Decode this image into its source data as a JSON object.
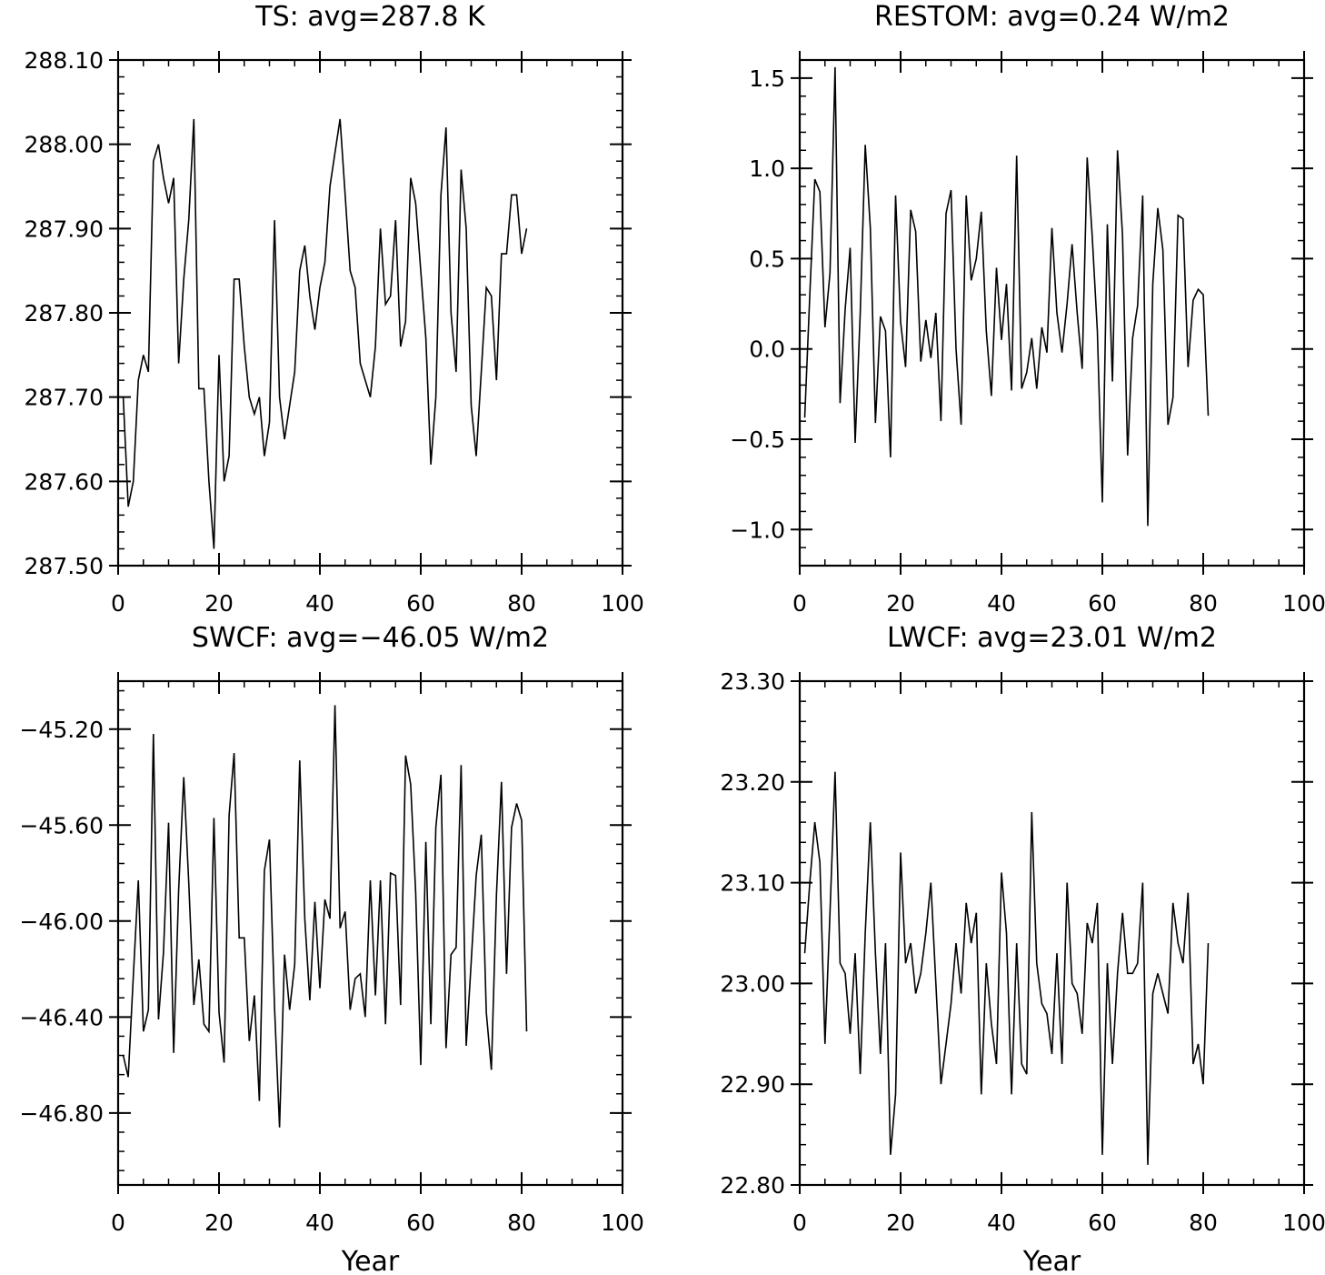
{
  "chart_data": [
    {
      "type": "line",
      "title": "TS: avg=287.8 K",
      "xlabel": "",
      "ylabel": "",
      "xlim": [
        0,
        100
      ],
      "ylim": [
        287.5,
        288.1
      ],
      "xticks": [
        0,
        20,
        40,
        60,
        80,
        100
      ],
      "xtick_labels": [
        "0",
        "20",
        "40",
        "60",
        "80",
        "100"
      ],
      "yticks": [
        287.5,
        287.6,
        287.7,
        287.8,
        287.9,
        288.0,
        288.1
      ],
      "ytick_labels": [
        "287.50",
        "287.60",
        "287.70",
        "287.80",
        "287.90",
        "288.00",
        "288.10"
      ],
      "x": [
        1,
        2,
        3,
        4,
        5,
        6,
        7,
        8,
        9,
        10,
        11,
        12,
        13,
        14,
        15,
        16,
        17,
        18,
        19,
        20,
        21,
        22,
        23,
        24,
        25,
        26,
        27,
        28,
        29,
        30,
        31,
        32,
        33,
        34,
        35,
        36,
        37,
        38,
        39,
        40,
        41,
        42,
        43,
        44,
        45,
        46,
        47,
        48,
        49,
        50,
        51,
        52,
        53,
        54,
        55,
        56,
        57,
        58,
        59,
        60,
        61,
        62,
        63,
        64,
        65,
        66,
        67,
        68,
        69,
        70,
        71,
        72,
        73,
        74,
        75,
        76,
        77,
        78,
        79,
        80,
        81
      ],
      "values": [
        287.7,
        287.57,
        287.6,
        287.72,
        287.75,
        287.73,
        287.98,
        288.0,
        287.96,
        287.93,
        287.96,
        287.74,
        287.84,
        287.91,
        288.03,
        287.71,
        287.71,
        287.6,
        287.52,
        287.75,
        287.6,
        287.63,
        287.84,
        287.84,
        287.76,
        287.7,
        287.68,
        287.7,
        287.63,
        287.67,
        287.91,
        287.7,
        287.65,
        287.69,
        287.73,
        287.85,
        287.88,
        287.82,
        287.78,
        287.83,
        287.86,
        287.95,
        287.99,
        288.03,
        287.94,
        287.85,
        287.83,
        287.74,
        287.72,
        287.7,
        287.76,
        287.9,
        287.81,
        287.82,
        287.91,
        287.76,
        287.79,
        287.96,
        287.93,
        287.85,
        287.77,
        287.62,
        287.7,
        287.94,
        288.02,
        287.8,
        287.73,
        287.97,
        287.9,
        287.69,
        287.63,
        287.73,
        287.83,
        287.82,
        287.72,
        287.87,
        287.87,
        287.94,
        287.94,
        287.87,
        287.9
      ]
    },
    {
      "type": "line",
      "title": "RESTOM: avg=0.24 W/m2",
      "xlabel": "",
      "ylabel": "",
      "xlim": [
        0,
        100
      ],
      "ylim": [
        -1.2,
        1.6
      ],
      "xticks": [
        0,
        20,
        40,
        60,
        80,
        100
      ],
      "xtick_labels": [
        "0",
        "20",
        "40",
        "60",
        "80",
        "100"
      ],
      "yticks": [
        -1.0,
        -0.5,
        0.0,
        0.5,
        1.0,
        1.5
      ],
      "ytick_labels": [
        "−1.0",
        "−0.5",
        "0.0",
        "0.5",
        "1.0",
        "1.5"
      ],
      "x": [
        1,
        2,
        3,
        4,
        5,
        6,
        7,
        8,
        9,
        10,
        11,
        12,
        13,
        14,
        15,
        16,
        17,
        18,
        19,
        20,
        21,
        22,
        23,
        24,
        25,
        26,
        27,
        28,
        29,
        30,
        31,
        32,
        33,
        34,
        35,
        36,
        37,
        38,
        39,
        40,
        41,
        42,
        43,
        44,
        45,
        46,
        47,
        48,
        49,
        50,
        51,
        52,
        53,
        54,
        55,
        56,
        57,
        58,
        59,
        60,
        61,
        62,
        63,
        64,
        65,
        66,
        67,
        68,
        69,
        70,
        71,
        72,
        73,
        74,
        75,
        76,
        77,
        78,
        79,
        80,
        81
      ],
      "values": [
        -0.38,
        0.3,
        0.94,
        0.87,
        0.12,
        0.42,
        1.56,
        -0.3,
        0.22,
        0.56,
        -0.52,
        0.2,
        1.13,
        0.67,
        -0.41,
        0.18,
        0.1,
        -0.6,
        0.85,
        0.15,
        -0.1,
        0.77,
        0.65,
        -0.07,
        0.16,
        -0.05,
        0.2,
        -0.4,
        0.75,
        0.88,
        0.0,
        -0.42,
        0.85,
        0.38,
        0.5,
        0.76,
        0.1,
        -0.26,
        0.45,
        0.05,
        0.36,
        -0.23,
        1.07,
        -0.22,
        -0.13,
        0.06,
        -0.22,
        0.12,
        -0.02,
        0.67,
        0.2,
        -0.02,
        0.25,
        0.58,
        0.2,
        -0.11,
        1.06,
        0.62,
        0.1,
        -0.85,
        0.69,
        -0.18,
        1.1,
        0.63,
        -0.59,
        0.06,
        0.24,
        0.85,
        -0.98,
        0.36,
        0.78,
        0.55,
        -0.42,
        -0.27,
        0.74,
        0.72,
        -0.1,
        0.27,
        0.33,
        0.3,
        -0.37
      ]
    },
    {
      "type": "line",
      "title": "SWCF: avg=−46.05 W/m2",
      "xlabel": "Year",
      "ylabel": "",
      "xlim": [
        0,
        100
      ],
      "ylim": [
        -47.1,
        -45.0
      ],
      "xticks": [
        0,
        20,
        40,
        60,
        80,
        100
      ],
      "xtick_labels": [
        "0",
        "20",
        "40",
        "60",
        "80",
        "100"
      ],
      "yticks": [
        -46.8,
        -46.4,
        -46.0,
        -45.6,
        -45.2
      ],
      "ytick_labels": [
        "−46.80",
        "−46.40",
        "−46.00",
        "−45.60",
        "−45.20"
      ],
      "x": [
        1,
        2,
        3,
        4,
        5,
        6,
        7,
        8,
        9,
        10,
        11,
        12,
        13,
        14,
        15,
        16,
        17,
        18,
        19,
        20,
        21,
        22,
        23,
        24,
        25,
        26,
        27,
        28,
        29,
        30,
        31,
        32,
        33,
        34,
        35,
        36,
        37,
        38,
        39,
        40,
        41,
        42,
        43,
        44,
        45,
        46,
        47,
        48,
        49,
        50,
        51,
        52,
        53,
        54,
        55,
        56,
        57,
        58,
        59,
        60,
        61,
        62,
        63,
        64,
        65,
        66,
        67,
        68,
        69,
        70,
        71,
        72,
        73,
        74,
        75,
        76,
        77,
        78,
        79,
        80,
        81
      ],
      "values": [
        -46.56,
        -46.65,
        -46.23,
        -45.83,
        -46.46,
        -46.37,
        -45.22,
        -46.41,
        -46.13,
        -45.59,
        -46.55,
        -45.87,
        -45.4,
        -45.84,
        -46.35,
        -46.16,
        -46.43,
        -46.46,
        -45.57,
        -46.38,
        -46.59,
        -45.56,
        -45.3,
        -46.07,
        -46.07,
        -46.5,
        -46.31,
        -46.75,
        -45.79,
        -45.66,
        -46.36,
        -46.86,
        -46.14,
        -46.37,
        -46.18,
        -45.33,
        -45.99,
        -46.33,
        -45.92,
        -46.28,
        -45.91,
        -45.99,
        -45.1,
        -46.03,
        -45.96,
        -46.37,
        -46.24,
        -46.22,
        -46.4,
        -45.83,
        -46.31,
        -45.83,
        -46.43,
        -45.8,
        -45.81,
        -46.35,
        -45.31,
        -45.43,
        -45.88,
        -46.6,
        -45.67,
        -46.43,
        -45.61,
        -45.39,
        -46.53,
        -46.14,
        -46.11,
        -45.35,
        -46.52,
        -46.17,
        -45.81,
        -45.64,
        -46.38,
        -46.62,
        -45.89,
        -45.42,
        -46.22,
        -45.61,
        -45.51,
        -45.58,
        -46.46
      ]
    },
    {
      "type": "line",
      "title": "LWCF: avg=23.01 W/m2",
      "xlabel": "Year",
      "ylabel": "",
      "xlim": [
        0,
        100
      ],
      "ylim": [
        22.8,
        23.3
      ],
      "xticks": [
        0,
        20,
        40,
        60,
        80,
        100
      ],
      "xtick_labels": [
        "0",
        "20",
        "40",
        "60",
        "80",
        "100"
      ],
      "yticks": [
        22.8,
        22.9,
        23.0,
        23.1,
        23.2,
        23.3
      ],
      "ytick_labels": [
        "22.80",
        "22.90",
        "23.00",
        "23.10",
        "23.20",
        "23.30"
      ],
      "x": [
        1,
        2,
        3,
        4,
        5,
        6,
        7,
        8,
        9,
        10,
        11,
        12,
        13,
        14,
        15,
        16,
        17,
        18,
        19,
        20,
        21,
        22,
        23,
        24,
        25,
        26,
        27,
        28,
        29,
        30,
        31,
        32,
        33,
        34,
        35,
        36,
        37,
        38,
        39,
        40,
        41,
        42,
        43,
        44,
        45,
        46,
        47,
        48,
        49,
        50,
        51,
        52,
        53,
        54,
        55,
        56,
        57,
        58,
        59,
        60,
        61,
        62,
        63,
        64,
        65,
        66,
        67,
        68,
        69,
        70,
        71,
        72,
        73,
        74,
        75,
        76,
        77,
        78,
        79,
        80,
        81
      ],
      "values": [
        23.03,
        23.1,
        23.16,
        23.12,
        22.94,
        23.07,
        23.21,
        23.02,
        23.01,
        22.95,
        23.03,
        22.91,
        23.05,
        23.16,
        23.03,
        22.93,
        23.04,
        22.83,
        22.89,
        23.13,
        23.02,
        23.04,
        22.99,
        23.01,
        23.05,
        23.1,
        23.0,
        22.9,
        22.94,
        22.98,
        23.04,
        22.99,
        23.08,
        23.04,
        23.07,
        22.89,
        23.02,
        22.96,
        22.92,
        23.11,
        23.05,
        22.89,
        23.04,
        22.92,
        22.91,
        23.17,
        23.02,
        22.98,
        22.97,
        22.93,
        23.03,
        22.92,
        23.1,
        23.0,
        22.99,
        22.95,
        23.06,
        23.04,
        23.08,
        22.83,
        23.02,
        22.92,
        23.01,
        23.07,
        23.01,
        23.01,
        23.02,
        23.1,
        22.82,
        22.99,
        23.01,
        22.99,
        22.97,
        23.08,
        23.04,
        23.02,
        23.09,
        22.92,
        22.94,
        22.9,
        23.04
      ]
    }
  ]
}
